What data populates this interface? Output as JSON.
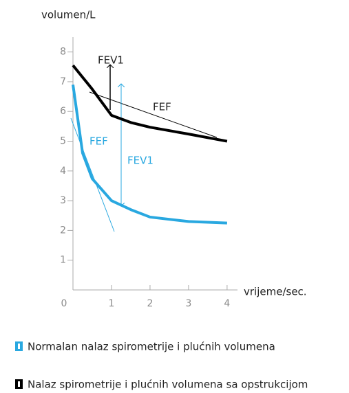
{
  "chart_data": {
    "type": "line",
    "y_label": "volumen/L",
    "x_label": "vrijeme/sec.",
    "annotations": [
      "FEV1",
      "FEF",
      "FEF",
      "FEV1"
    ],
    "x": [
      0,
      0.25,
      0.5,
      1,
      1.5,
      2,
      3,
      4
    ],
    "series": [
      {
        "name": "Normalan nalaz spirometrije i plućnih volumena",
        "color": "#29a8e0",
        "values": [
          6.9,
          4.6,
          3.74,
          3.0,
          2.7,
          2.45,
          2.3,
          2.25
        ]
      },
      {
        "name": "Nalaz spirometrije i plućnih volumena sa opstrukcijom",
        "color": "#000000",
        "values": [
          7.55,
          7.15,
          6.75,
          5.87,
          5.63,
          5.47,
          5.24,
          5.0
        ]
      }
    ],
    "xlim": [
      0,
      4.27
    ],
    "ylim": [
      0,
      8.5
    ],
    "xticks": [
      0,
      1,
      2,
      3,
      4
    ],
    "yticks": [
      1,
      2,
      3,
      4,
      5,
      6,
      7,
      8
    ]
  }
}
